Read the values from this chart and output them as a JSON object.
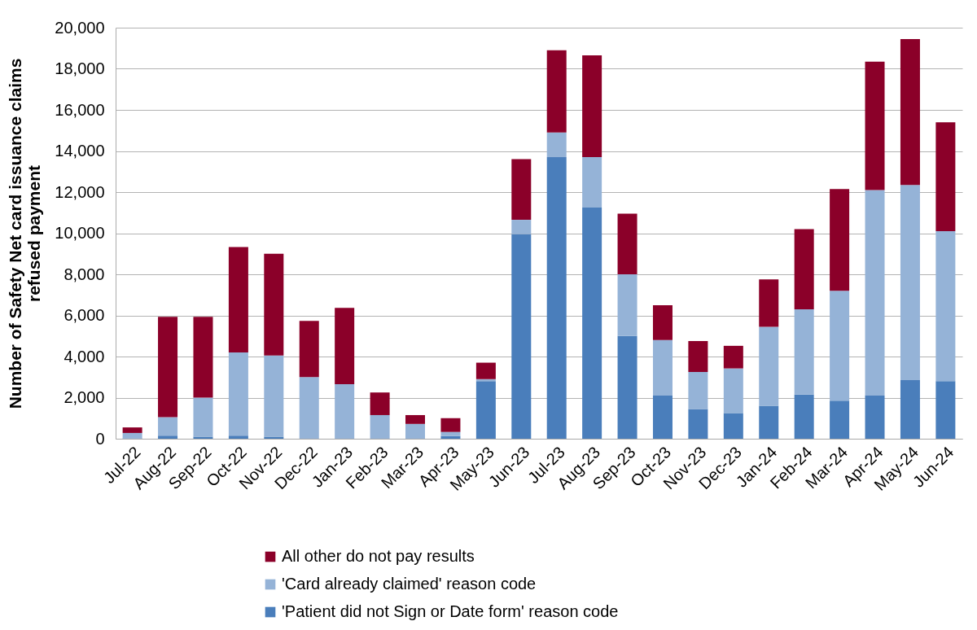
{
  "chart_data": {
    "type": "bar",
    "stacked": true,
    "ylabel": "Number of Safety Net card issuance claims refused payment",
    "categories": [
      "Jul-22",
      "Aug-22",
      "Sep-22",
      "Oct-22",
      "Nov-22",
      "Dec-22",
      "Jan-23",
      "Feb-23",
      "Mar-23",
      "Apr-23",
      "May-23",
      "Jun-23",
      "Jul-23",
      "Aug-23",
      "Sep-23",
      "Oct-23",
      "Nov-23",
      "Dec-23",
      "Jan-24",
      "Feb-24",
      "Mar-24",
      "Apr-24",
      "May-24",
      "Jun-24"
    ],
    "series": [
      {
        "name": "'Patient did not Sign or Date form' reason code",
        "color": "#4a7ebb",
        "values": [
          20,
          150,
          100,
          150,
          100,
          0,
          0,
          0,
          0,
          130,
          2800,
          9950,
          13700,
          11250,
          5000,
          2100,
          1450,
          1250,
          1600,
          2150,
          1850,
          2100,
          2850,
          2800
        ]
      },
      {
        "name": "'Card already claimed' reason code",
        "color": "#95b3d7",
        "values": [
          260,
          900,
          1900,
          4050,
          3950,
          3000,
          2650,
          1150,
          720,
          200,
          100,
          700,
          1200,
          2450,
          3000,
          2700,
          1800,
          2170,
          3850,
          4150,
          5350,
          10000,
          9500,
          7300
        ]
      },
      {
        "name": "All other do not pay results",
        "color": "#8b0029",
        "values": [
          270,
          4880,
          3930,
          5130,
          4950,
          2730,
          3720,
          1100,
          430,
          670,
          800,
          2950,
          4000,
          4950,
          2950,
          1700,
          1500,
          1100,
          2300,
          3900,
          4950,
          6250,
          7100,
          5300
        ]
      }
    ],
    "ylim": [
      0,
      20000
    ],
    "yticks": [
      0,
      {
        "value": 2000,
        "label": "2,000"
      },
      {
        "value": 4000,
        "label": "4,000"
      },
      {
        "value": 6000,
        "label": "6,000"
      },
      {
        "value": 8000,
        "label": "8,000"
      },
      {
        "value": 10000,
        "label": "10,000"
      },
      {
        "value": 12000,
        "label": "12,000"
      },
      {
        "value": 14000,
        "label": "14,000"
      },
      {
        "value": 16000,
        "label": "16,000"
      },
      {
        "value": 18000,
        "label": "18,000"
      },
      {
        "value": 20000,
        "label": "20,000"
      }
    ],
    "grid": "y",
    "legend": "bottom"
  }
}
